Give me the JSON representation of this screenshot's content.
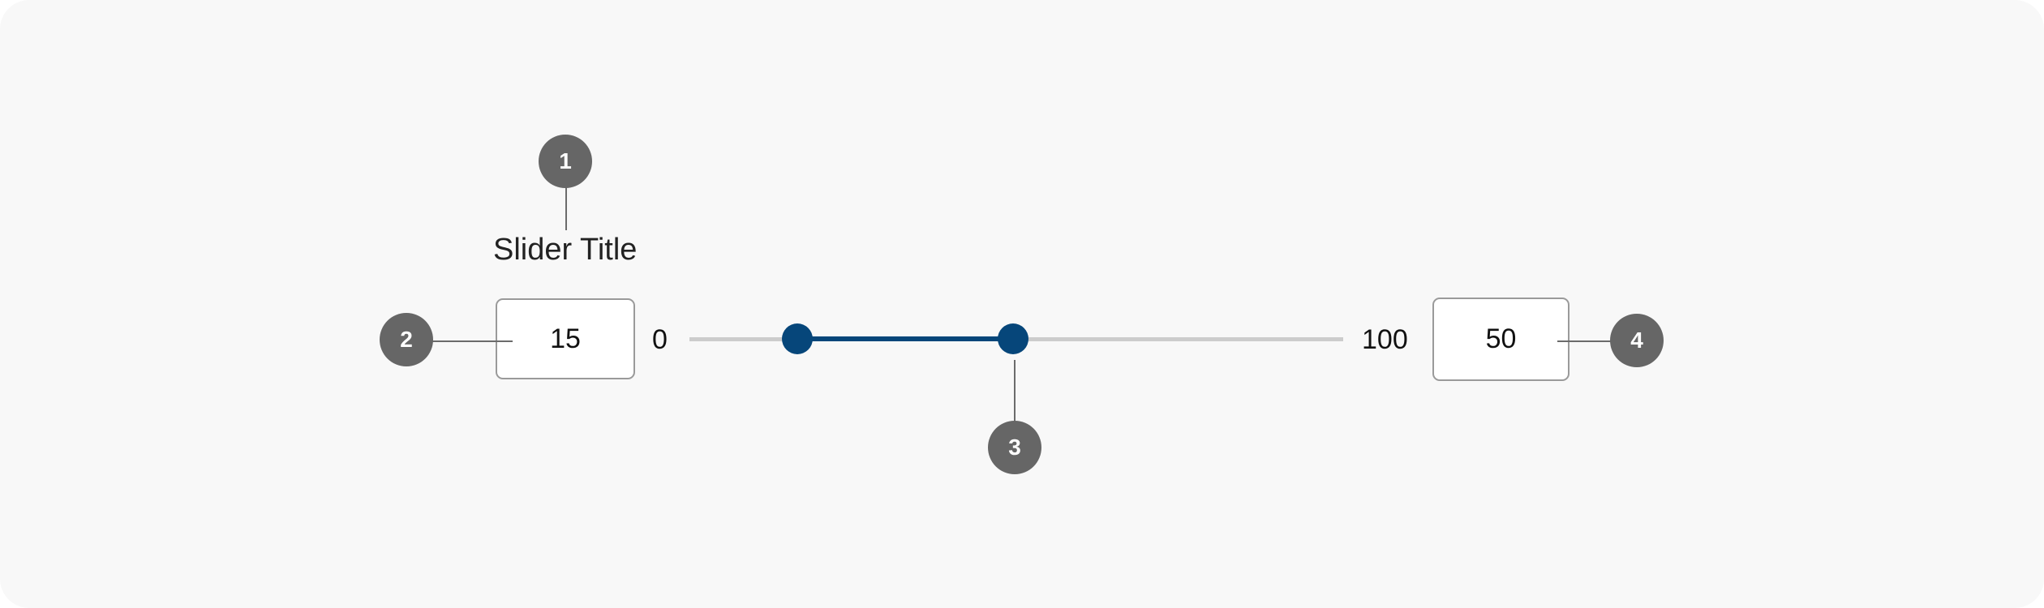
{
  "slider": {
    "title": "Slider Title",
    "min_label": "0",
    "max_label": "100",
    "selected_min": "15",
    "selected_max": "50",
    "track_color": "#cccccc",
    "fill_color": "#06467a"
  },
  "callouts": [
    "1",
    "2",
    "3",
    "4"
  ]
}
